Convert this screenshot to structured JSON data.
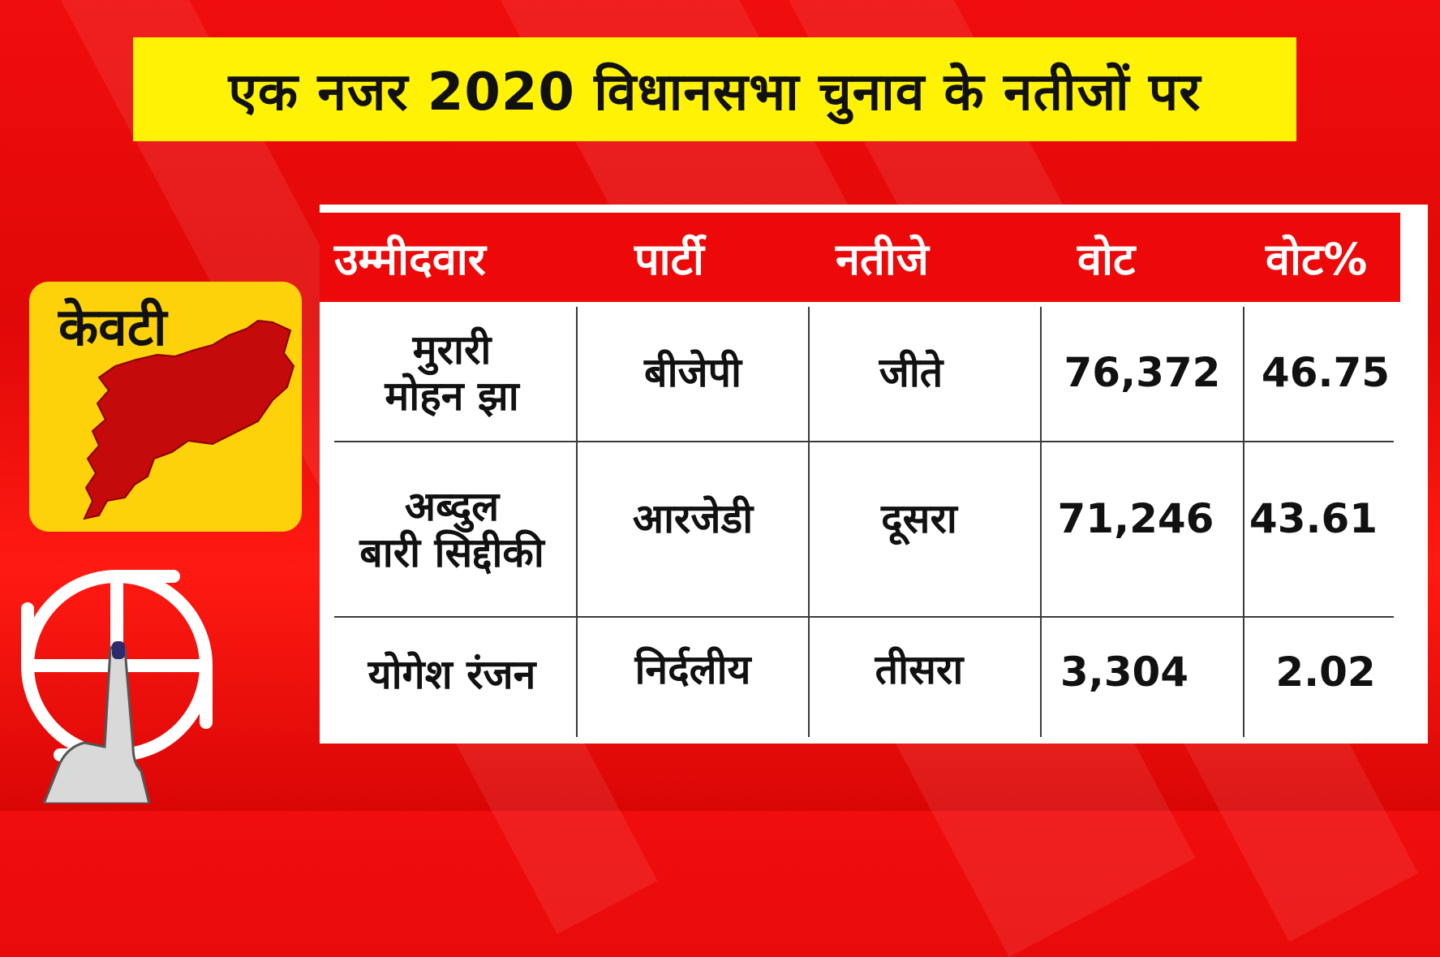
{
  "title": "एक नजर 2020 विधानसभा चुनाव के नतीजों पर",
  "constituency": "केवटी",
  "colors": {
    "background": "#ed0909",
    "title_bar": "#fff205",
    "map_card": "#fdd20a",
    "map_fill": "#c40a0a",
    "header": "#ed0909"
  },
  "icons": [
    "constituency-map-icon",
    "election-symbol-icon",
    "inked-finger-icon"
  ],
  "table": {
    "headers": [
      "उम्मीदवार",
      "पार्टी",
      "नतीजे",
      "वोट",
      "वोट%"
    ],
    "rows": [
      {
        "candidate_line1": "मुरारी",
        "candidate_line2": "मोहन झा",
        "party": "बीजेपी",
        "result": "जीते",
        "votes": "76,372",
        "vote_pct": "46.75"
      },
      {
        "candidate_line1": "अब्दुल",
        "candidate_line2": "बारी सिद्दीकी",
        "party": "आरजेडी",
        "result": "दूसरा",
        "votes": "71,246",
        "vote_pct": "43.61"
      },
      {
        "candidate_line1": "योगेश रंजन",
        "candidate_line2": "",
        "party": "निर्दलीय",
        "result": "तीसरा",
        "votes": "3,304",
        "vote_pct": "2.02"
      }
    ]
  }
}
